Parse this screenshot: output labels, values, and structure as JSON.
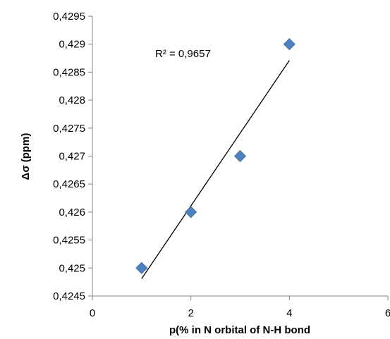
{
  "chart_data": {
    "type": "scatter",
    "xlabel": "p(% in N orbital of N-H bond",
    "ylabel": "Δσ (ppm)",
    "xlim": [
      0,
      6
    ],
    "ylim": [
      0.4245,
      0.4295
    ],
    "x_ticks": [
      "0",
      "2",
      "4",
      "6"
    ],
    "y_ticks": [
      "0,4245",
      "0,425",
      "0,4255",
      "0,426",
      "0,4265",
      "0,427",
      "0,4275",
      "0,428",
      "0,4285",
      "0,429",
      "0,4295"
    ],
    "grid": false,
    "legend": "none",
    "series": [
      {
        "marker": "diamond",
        "color": "#4f81bd",
        "points": [
          {
            "x": 1,
            "y": 0.425
          },
          {
            "x": 2,
            "y": 0.426
          },
          {
            "x": 3,
            "y": 0.427
          },
          {
            "x": 4,
            "y": 0.429
          }
        ]
      }
    ],
    "trendline": {
      "type": "linear",
      "color": "#000000",
      "x_range": [
        1,
        4
      ],
      "y_start": 0.42481,
      "y_end": 0.42871
    },
    "annotations": [
      {
        "text": "R² = 0,9657"
      }
    ]
  }
}
